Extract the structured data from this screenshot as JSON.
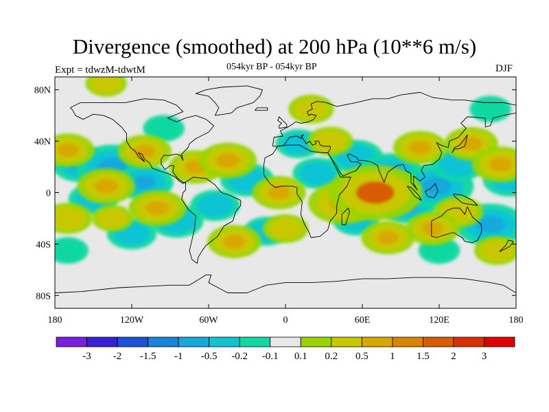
{
  "chart_data": {
    "type": "heatmap",
    "title": "Divergence (smoothed) at 200 hPa (10**6 m/s)",
    "left_subtitle": "Expt = tdwzM-tdwtM",
    "center_subtitle": "054kyr BP - 054kyr BP",
    "right_subtitle": "DJF",
    "xlim": [
      -180,
      180
    ],
    "ylim": [
      -90,
      90
    ],
    "x_ticks": [
      {
        "value": -180,
        "label": "180"
      },
      {
        "value": -120,
        "label": "120W"
      },
      {
        "value": -60,
        "label": "60W"
      },
      {
        "value": 0,
        "label": "0"
      },
      {
        "value": 60,
        "label": "60E"
      },
      {
        "value": 120,
        "label": "120E"
      },
      {
        "value": 180,
        "label": "180"
      }
    ],
    "y_ticks": [
      {
        "value": 80,
        "label": "80N"
      },
      {
        "value": 40,
        "label": "40N"
      },
      {
        "value": 0,
        "label": "0"
      },
      {
        "value": -40,
        "label": "40S"
      },
      {
        "value": -80,
        "label": "80S"
      }
    ],
    "colorbar": {
      "labels": [
        "-3",
        "-2",
        "-1.5",
        "-1",
        "-0.5",
        "-0.2",
        "-0.1",
        "0.1",
        "0.2",
        "0.5",
        "1",
        "1.5",
        "2",
        "3"
      ],
      "colors": [
        "#7a1fe0",
        "#3a1fd8",
        "#1c50d8",
        "#1884d8",
        "#14a8dc",
        "#10c4d4",
        "#10d8a0",
        "#e8e8e8",
        "#9ad400",
        "#c8c800",
        "#d8a800",
        "#d88400",
        "#d85c00",
        "#d83000",
        "#e00000"
      ]
    },
    "features": [
      {
        "lon": -160,
        "lat": 22,
        "value": -0.6
      },
      {
        "lon": -135,
        "lat": 20,
        "value": -1.0
      },
      {
        "lon": -110,
        "lat": 8,
        "value": -0.6
      },
      {
        "lon": -150,
        "lat": -5,
        "value": -0.4
      },
      {
        "lon": -120,
        "lat": -32,
        "value": -0.4
      },
      {
        "lon": -85,
        "lat": -22,
        "value": -0.5
      },
      {
        "lon": -55,
        "lat": -10,
        "value": -0.4
      },
      {
        "lon": -30,
        "lat": 10,
        "value": -0.5
      },
      {
        "lon": -15,
        "lat": -30,
        "value": -0.3
      },
      {
        "lon": 10,
        "lat": 38,
        "value": -0.3
      },
      {
        "lon": 25,
        "lat": 15,
        "value": -0.4
      },
      {
        "lon": 55,
        "lat": 28,
        "value": -0.5
      },
      {
        "lon": 82,
        "lat": 15,
        "value": -0.8
      },
      {
        "lon": 95,
        "lat": -10,
        "value": -0.6
      },
      {
        "lon": 118,
        "lat": 5,
        "value": -1.0
      },
      {
        "lon": 135,
        "lat": 22,
        "value": -0.5
      },
      {
        "lon": 160,
        "lat": -25,
        "value": -0.9
      },
      {
        "lon": 175,
        "lat": 10,
        "value": -0.5
      },
      {
        "lon": 55,
        "lat": -22,
        "value": -0.3
      },
      {
        "lon": 120,
        "lat": -45,
        "value": -0.2
      },
      {
        "lon": -170,
        "lat": -45,
        "value": -0.2
      },
      {
        "lon": 160,
        "lat": 65,
        "value": -0.2
      },
      {
        "lon": -95,
        "lat": 50,
        "value": -0.2
      },
      {
        "lon": -170,
        "lat": 33,
        "value": 0.5
      },
      {
        "lon": -110,
        "lat": 32,
        "value": 0.5
      },
      {
        "lon": -140,
        "lat": 5,
        "value": 0.6
      },
      {
        "lon": -100,
        "lat": -12,
        "value": 0.6
      },
      {
        "lon": -70,
        "lat": 20,
        "value": 0.5
      },
      {
        "lon": -45,
        "lat": 25,
        "value": 0.6
      },
      {
        "lon": -40,
        "lat": -38,
        "value": 0.5
      },
      {
        "lon": -5,
        "lat": 0,
        "value": 0.5
      },
      {
        "lon": 0,
        "lat": -28,
        "value": 0.3
      },
      {
        "lon": 20,
        "lat": 65,
        "value": 0.3
      },
      {
        "lon": 35,
        "lat": 40,
        "value": 0.3
      },
      {
        "lon": 45,
        "lat": -8,
        "value": 0.9
      },
      {
        "lon": 70,
        "lat": 0,
        "value": 1.6
      },
      {
        "lon": 80,
        "lat": -35,
        "value": 0.5
      },
      {
        "lon": 105,
        "lat": 35,
        "value": 0.5
      },
      {
        "lon": 145,
        "lat": 38,
        "value": 0.5
      },
      {
        "lon": 168,
        "lat": 22,
        "value": 0.6
      },
      {
        "lon": 135,
        "lat": -15,
        "value": 0.4
      },
      {
        "lon": 115,
        "lat": -28,
        "value": 0.5
      },
      {
        "lon": 165,
        "lat": -45,
        "value": 0.3
      },
      {
        "lon": -135,
        "lat": -20,
        "value": 0.2
      },
      {
        "lon": -170,
        "lat": -20,
        "value": 0.4
      },
      {
        "lon": -140,
        "lat": 85,
        "value": 0.2
      }
    ]
  }
}
